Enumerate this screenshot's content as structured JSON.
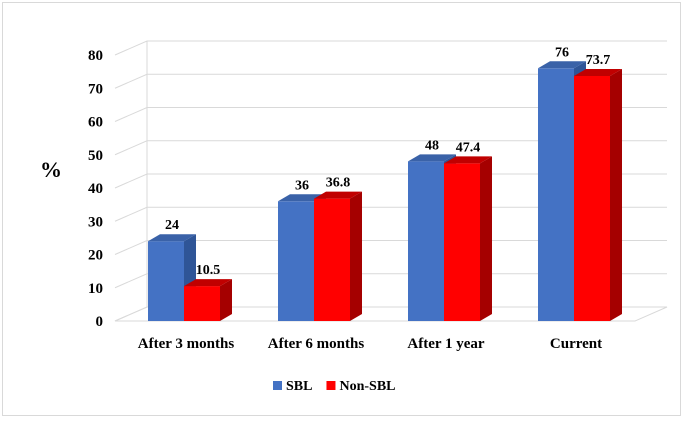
{
  "chart_data": {
    "type": "bar",
    "style": "3d-clustered-column",
    "title": "",
    "xlabel": "",
    "ylabel": "%",
    "ylim": [
      0,
      80
    ],
    "yticks": [
      0,
      10,
      20,
      30,
      40,
      50,
      60,
      70,
      80
    ],
    "grid": true,
    "legend_position": "bottom",
    "categories": [
      "After 3 months",
      "After 6 months",
      "After 1 year",
      "Current"
    ],
    "series": [
      {
        "name": "SBL",
        "values": [
          24,
          36,
          48,
          76
        ],
        "labels": [
          "24",
          "36",
          "48",
          "76"
        ],
        "color": "#4472C4",
        "side_color": "#2F5597",
        "top_color": "#3A62A8"
      },
      {
        "name": "Non-SBL",
        "values": [
          10.5,
          36.8,
          47.4,
          73.7
        ],
        "labels": [
          "10.5",
          "36.8",
          "47.4",
          "73.7"
        ],
        "color": "#FF0000",
        "side_color": "#A50000",
        "top_color": "#C00000"
      }
    ]
  }
}
